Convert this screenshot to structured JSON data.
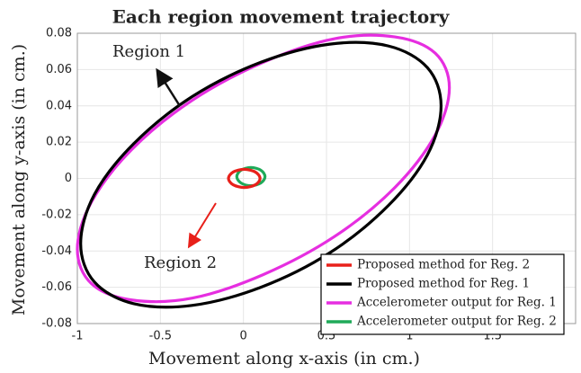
{
  "chart_data": {
    "type": "line",
    "title": "Each region movement trajectory",
    "x_label": "Movement along x-axis (in cm.)",
    "y_label": "Movement along y-axis (in cm.)",
    "xlim": [
      -1,
      2
    ],
    "xticks": [
      -1,
      -0.5,
      0,
      0.5,
      1,
      1.5
    ],
    "ylim": [
      -0.08,
      0.08
    ],
    "yticks": [
      -0.08,
      -0.06,
      -0.04,
      -0.02,
      0,
      0.02,
      0.04,
      0.06,
      0.08
    ],
    "grid": true,
    "legend": "lower right",
    "annotations": [
      {
        "text": "Region 1",
        "color": "#111111"
      },
      {
        "text": "Region 2",
        "color": "#e8201a"
      }
    ],
    "series": [
      {
        "name": "Proposed method for Reg. 2",
        "color": "#e8201a",
        "x": [
          0.1,
          0.072,
          0.005,
          -0.062,
          -0.09,
          -0.062,
          0.005,
          0.072
        ],
        "values": [
          0,
          0.0035,
          0.005,
          0.0035,
          0,
          -0.0035,
          -0.005,
          -0.0035
        ]
      },
      {
        "name": "Proposed method for Reg. 1",
        "color": "#000000",
        "x": [
          1.19,
          1.108,
          0.872,
          0.52,
          0.105,
          -0.31,
          -0.662,
          -0.898,
          -0.98,
          -0.898,
          -0.662,
          -0.31,
          0.105,
          0.52,
          0.872,
          1.108
        ],
        "values": [
          0.04,
          0.061,
          0.073,
          0.074,
          0.064,
          0.045,
          0.019,
          -0.009,
          -0.036,
          -0.057,
          -0.069,
          -0.07,
          -0.06,
          -0.041,
          -0.015,
          0.013
        ]
      },
      {
        "name": "Accelerometer output for Reg. 1",
        "color": "#e62ee0",
        "x": [
          1.24,
          1.155,
          0.912,
          0.549,
          0.12,
          -0.309,
          -0.672,
          -0.915,
          -1.0,
          -0.915,
          -0.672,
          -0.309,
          0.12,
          0.549,
          0.912,
          1.155
        ],
        "values": [
          0.05,
          0.069,
          0.078,
          0.077,
          0.064,
          0.043,
          0.016,
          -0.013,
          -0.039,
          -0.058,
          -0.067,
          -0.066,
          -0.053,
          -0.032,
          -0.005,
          0.024
        ]
      },
      {
        "name": "Accelerometer output for Reg. 2",
        "color": "#1faa59",
        "x": [
          0.13,
          0.105,
          0.045,
          -0.015,
          -0.04,
          -0.015,
          0.045,
          0.105
        ],
        "values": [
          0.001,
          0.0045,
          0.006,
          0.0045,
          0.001,
          -0.0025,
          -0.004,
          -0.0025
        ]
      }
    ]
  }
}
